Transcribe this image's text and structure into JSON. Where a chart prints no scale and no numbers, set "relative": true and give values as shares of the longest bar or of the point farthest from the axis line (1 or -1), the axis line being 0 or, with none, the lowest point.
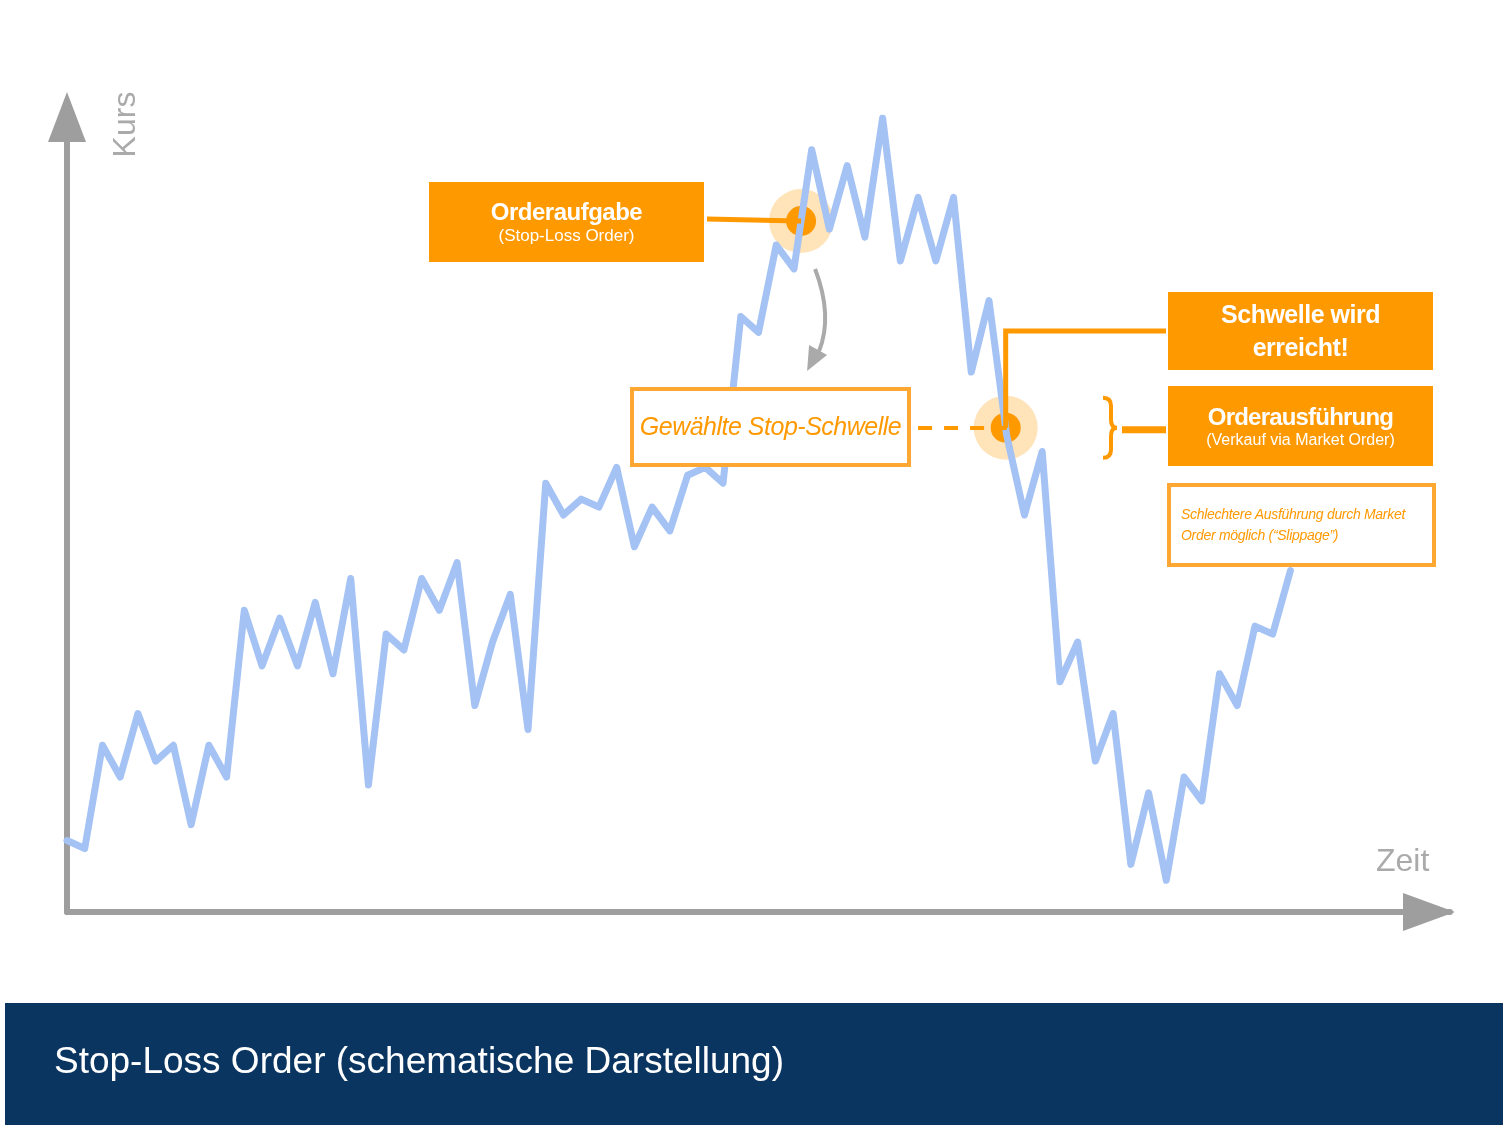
{
  "chart_data": {
    "type": "line",
    "title": "Stop-Loss Order (schematische Darstellung)",
    "xlabel": "Zeit",
    "ylabel": "Kurs",
    "relative": true,
    "categories": [
      null,
      null,
      null,
      null,
      null,
      null,
      null,
      null,
      null,
      null,
      null,
      null,
      null,
      null,
      null,
      null,
      null,
      null,
      null,
      null,
      null,
      null,
      null,
      null,
      null,
      null,
      null,
      null,
      null,
      null,
      null,
      null,
      null,
      null,
      null,
      null,
      null,
      null,
      null,
      null,
      null,
      null,
      null,
      null,
      null,
      null,
      null,
      null,
      null,
      null,
      null,
      null,
      null,
      null,
      null,
      null,
      null,
      null,
      null,
      null,
      null,
      null,
      null,
      null,
      null,
      null,
      null,
      null,
      null,
      null,
      null,
      null,
      null,
      null,
      null,
      null,
      null,
      null,
      null
    ],
    "series": [
      {
        "color": "#a4c2f4",
        "values": [
          0.09,
          0.08,
          0.21,
          0.17,
          0.25,
          0.19,
          0.21,
          0.11,
          0.21,
          0.17,
          0.38,
          0.31,
          0.37,
          0.31,
          0.39,
          0.3,
          0.42,
          0.16,
          0.35,
          0.33,
          0.42,
          0.38,
          0.44,
          0.26,
          0.34,
          0.4,
          0.23,
          0.54,
          0.5,
          0.52,
          0.51,
          0.56,
          0.46,
          0.51,
          0.48,
          0.55,
          0.56,
          0.54,
          0.75,
          0.73,
          0.84,
          0.81,
          0.96,
          0.86,
          0.94,
          0.85,
          1,
          0.82,
          0.9,
          0.82,
          0.9,
          0.68,
          0.77,
          0.6,
          0.5,
          0.58,
          0.29,
          0.34,
          0.19,
          0.25,
          0.06,
          0.15,
          0.04,
          0.17,
          0.14,
          0.3,
          0.26,
          0.36,
          0.35,
          0.43,
          null,
          null,
          null,
          null,
          null,
          null,
          null,
          null,
          null
        ]
      }
    ],
    "ref_lines": [
      {
        "axis": "y",
        "value": 0.61,
        "label": "Gewählte Stop-Schwelle",
        "color": "#ff9900",
        "line_style": "dashed"
      }
    ],
    "annotations": [
      "Orderaufgabe",
      "(Stop-Loss Order)",
      "Schwelle wird erreicht!",
      "Orderausführung",
      "(Verkauf via Market Order)",
      "Schlechtere Ausführung durch Market Order möglich (“Slippage”)"
    ]
  }
}
